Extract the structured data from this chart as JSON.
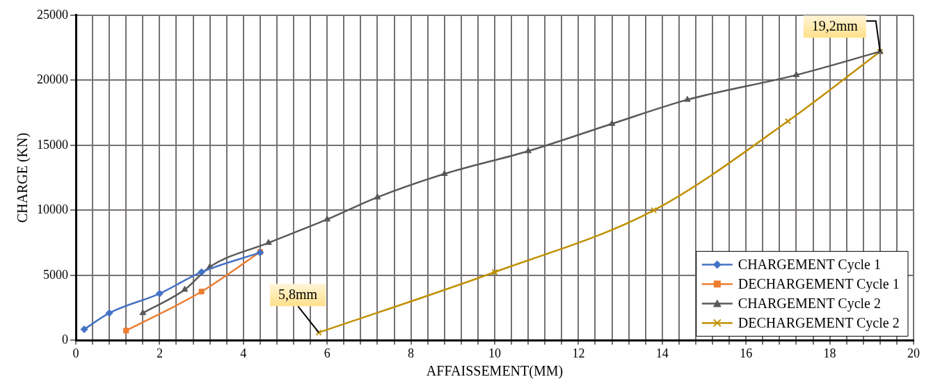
{
  "chart_data": {
    "type": "line",
    "xlabel": "AFFAISSEMENT(MM)",
    "ylabel": "CHARGE (KN)",
    "xlim": [
      0,
      20
    ],
    "xticks": [
      0,
      {
        "value": 0.4,
        "label": null
      },
      {
        "value": 0.8,
        "label": null
      },
      {
        "value": 1.2,
        "label": null
      },
      {
        "value": 1.6,
        "label": null
      },
      2,
      {
        "value": 2.4,
        "label": null
      },
      {
        "value": 2.8,
        "label": null
      },
      {
        "value": 3.2,
        "label": null
      },
      {
        "value": 3.6,
        "label": null
      },
      4,
      {
        "value": 4.4,
        "label": null
      },
      {
        "value": 4.8,
        "label": null
      },
      {
        "value": 5.2,
        "label": null
      },
      {
        "value": 5.6,
        "label": null
      },
      6,
      {
        "value": 6.4,
        "label": null
      },
      {
        "value": 6.8,
        "label": null
      },
      {
        "value": 7.2,
        "label": null
      },
      {
        "value": 7.6,
        "label": null
      },
      8,
      {
        "value": 8.4,
        "label": null
      },
      {
        "value": 8.8,
        "label": null
      },
      {
        "value": 9.2,
        "label": null
      },
      {
        "value": 9.6,
        "label": null
      },
      10,
      {
        "value": 10.4,
        "label": null
      },
      {
        "value": 10.8,
        "label": null
      },
      {
        "value": 11.2,
        "label": null
      },
      {
        "value": 11.6,
        "label": null
      },
      12,
      {
        "value": 12.4,
        "label": null
      },
      {
        "value": 12.8,
        "label": null
      },
      {
        "value": 13.2,
        "label": null
      },
      {
        "value": 13.6,
        "label": null
      },
      14,
      {
        "value": 14.4,
        "label": null
      },
      {
        "value": 14.8,
        "label": null
      },
      {
        "value": 15.2,
        "label": null
      },
      {
        "value": 15.6,
        "label": null
      },
      16,
      {
        "value": 16.4,
        "label": null
      },
      {
        "value": 16.8,
        "label": null
      },
      {
        "value": 17.2,
        "label": null
      },
      {
        "value": 17.6,
        "label": null
      },
      18,
      {
        "value": 18.4,
        "label": null
      },
      {
        "value": 18.8,
        "label": null
      },
      {
        "value": 19.2,
        "label": null
      },
      {
        "value": 19.6,
        "label": null
      },
      20
    ],
    "ylim": [
      0,
      25000
    ],
    "yticks": [
      0,
      5000,
      10000,
      15000,
      20000,
      25000
    ],
    "grid": true,
    "legend": "bottom right",
    "series": [
      {
        "name": "CHARGEMENT Cycle 1",
        "color": "#4472c4",
        "marker": "diamond",
        "x": [
          0.2,
          0.8,
          2.0,
          3.0,
          4.4
        ],
        "values": [
          850,
          2100,
          3600,
          5250,
          6750
        ]
      },
      {
        "name": "DECHARGEMENT Cycle 1",
        "color": "#ed7d31",
        "marker": "square",
        "x": [
          1.2,
          3.0,
          4.4
        ],
        "values": [
          750,
          3750,
          6800
        ]
      },
      {
        "name": "CHARGEMENT Cycle 2",
        "color": "#595959",
        "marker": "triangle",
        "x": [
          1.6,
          2.6,
          3.2,
          4.6,
          6.0,
          7.2,
          8.8,
          10.8,
          12.8,
          14.6,
          17.2,
          19.2
        ],
        "values": [
          2100,
          3900,
          5650,
          7500,
          9300,
          11000,
          12800,
          14550,
          16650,
          18500,
          20400,
          22200
        ]
      },
      {
        "name": "DECHARGEMENT Cycle 2",
        "color": "#bf9000",
        "marker": "cross",
        "x": [
          5.8,
          10.0,
          13.8,
          17.0,
          19.2
        ],
        "values": [
          600,
          5250,
          10000,
          16850,
          22200
        ]
      }
    ],
    "annotations": [
      {
        "text": "5,8mm",
        "x": 5.8,
        "y": 600
      },
      {
        "text": "19,2mm",
        "x": 19.2,
        "y": 22200
      }
    ]
  }
}
